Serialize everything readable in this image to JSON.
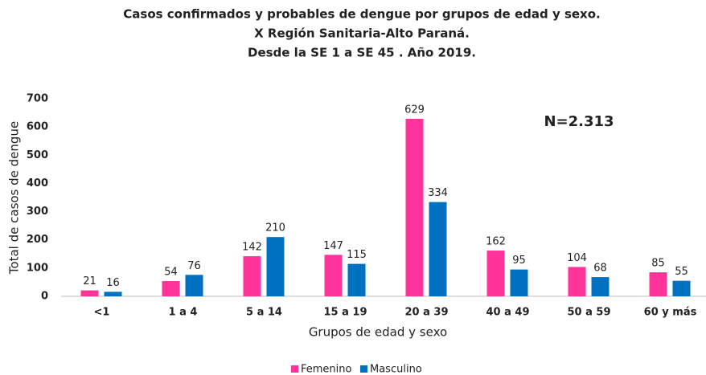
{
  "chart_data": {
    "type": "bar",
    "title": [
      "Casos confirmados y probables de dengue por grupos de edad y sexo.",
      "X Región Sanitaria-Alto Paraná.",
      "Desde la SE 1 a SE 45 . Año 2019."
    ],
    "annotation": "N=2.313",
    "x_label": "Grupos de edad y sexo",
    "y_label": "Total de casos de dengue",
    "categories": [
      "<1",
      "1 a 4",
      "5 a 14",
      "15 a 19",
      "20 a 39",
      "40 a 49",
      "50 a 59",
      "60 y más"
    ],
    "series": [
      {
        "name": "Femenino",
        "color": "#ff3399",
        "values": [
          21,
          54,
          142,
          147,
          629,
          162,
          104,
          85
        ]
      },
      {
        "name": "Masculino",
        "color": "#0070c0",
        "values": [
          16,
          76,
          210,
          115,
          334,
          95,
          68,
          55
        ]
      }
    ],
    "ylim": [
      0,
      700
    ],
    "yticks": [
      0,
      100,
      200,
      300,
      400,
      500,
      600,
      700
    ],
    "grid": false,
    "legend": "bottom"
  }
}
